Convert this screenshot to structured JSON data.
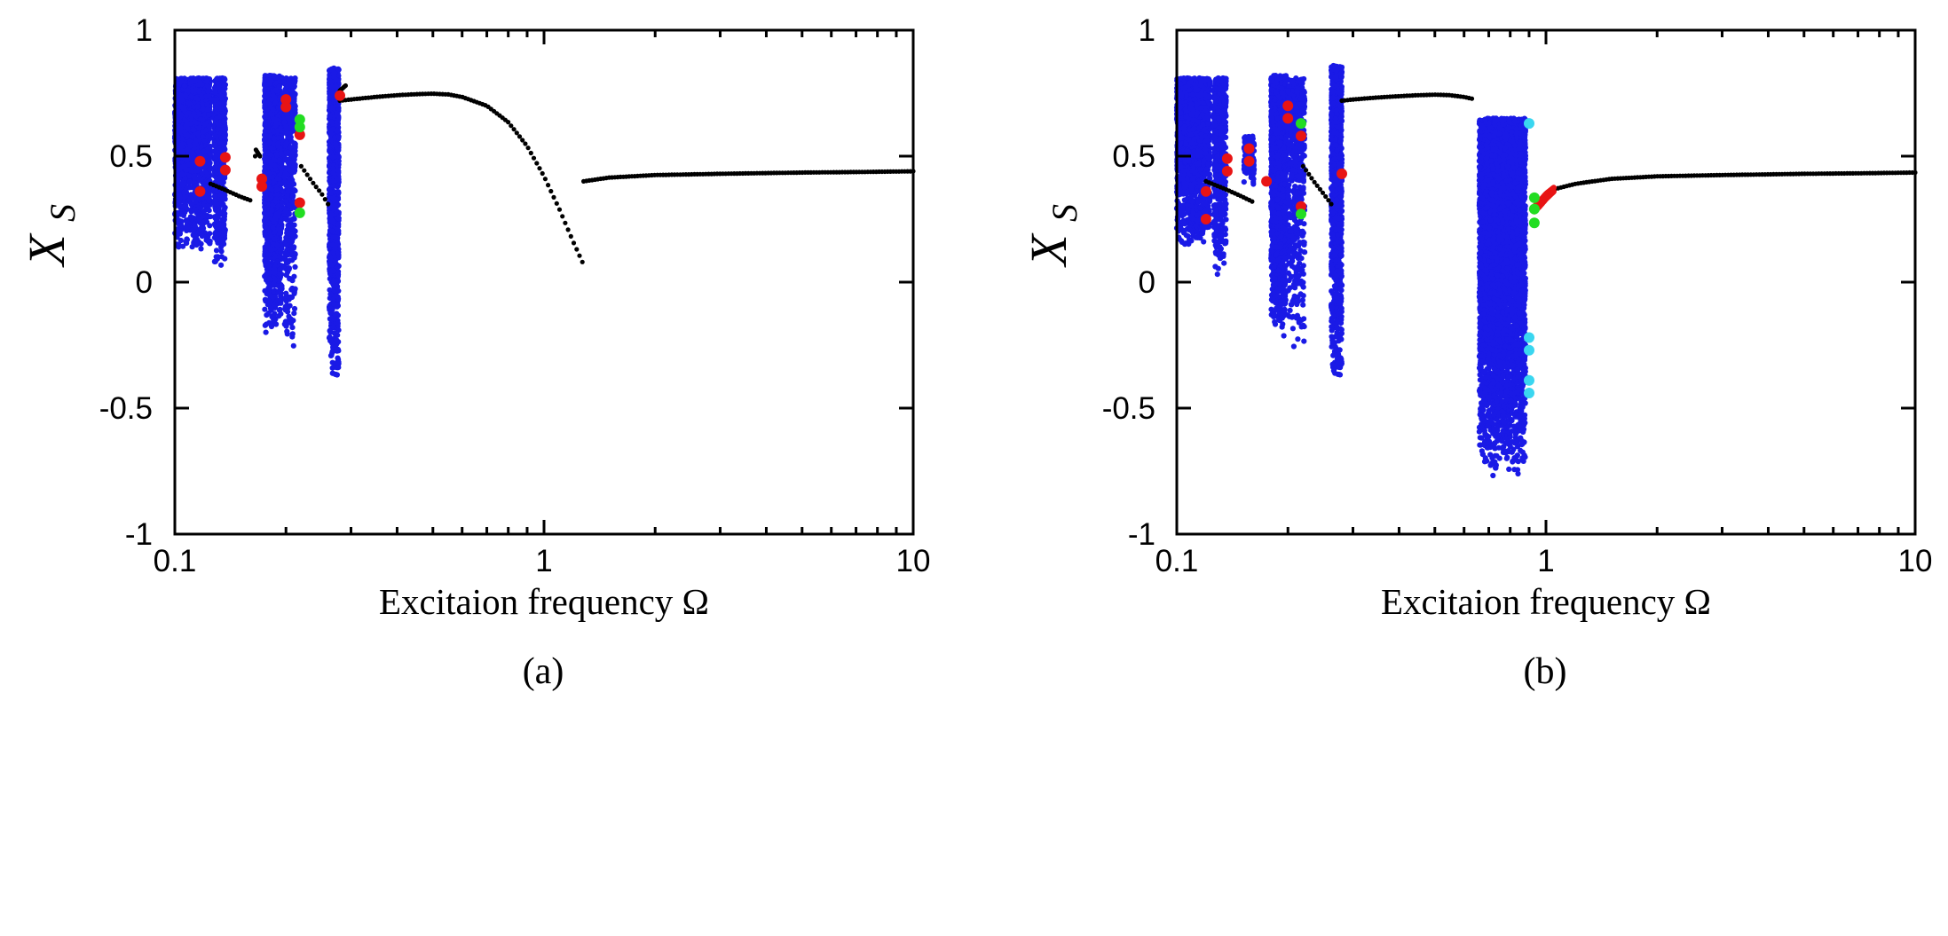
{
  "chart_data": [
    {
      "panel_id": "a",
      "type": "scatter",
      "subtype": "bifurcation-diagram",
      "panel_label": "(a)",
      "xlabel": "Excitaion frequency Ω",
      "ylabel_main": "X",
      "ylabel_sub": "S",
      "xscale": "log",
      "xlim": [
        0.1,
        10
      ],
      "ylim": [
        -1,
        1
      ],
      "xticks": [
        0.1,
        1,
        10
      ],
      "xtick_labels": [
        "0.1",
        "1",
        "10"
      ],
      "yticks": [
        -1,
        -0.5,
        0,
        0.5,
        1
      ],
      "ytick_labels": [
        "-1",
        "-0.5",
        "0",
        "0.5",
        "1"
      ],
      "colors": {
        "chaos": "#1a1ae6",
        "period1": "#000000",
        "period2": "#e81414",
        "period3": "#22dd22",
        "multi": "#3ad6f0"
      },
      "chaotic_bands": [
        {
          "x": [
            0.1,
            0.125
          ],
          "y": [
            0.12,
            0.81
          ],
          "count": 1700
        },
        {
          "x": [
            0.128,
            0.137
          ],
          "y": [
            0.05,
            0.81
          ],
          "count": 650
        },
        {
          "x": [
            0.175,
            0.195
          ],
          "y": [
            -0.22,
            0.82
          ],
          "count": 1500
        },
        {
          "x": [
            0.198,
            0.212
          ],
          "y": [
            -0.26,
            0.81
          ],
          "count": 500
        },
        {
          "x": [
            0.262,
            0.278
          ],
          "y": [
            -0.39,
            0.85
          ],
          "count": 1250
        }
      ],
      "periodic_curves": [
        {
          "x": [
            0.28,
            0.3,
            0.35,
            0.4,
            0.45,
            0.5,
            0.55,
            0.6,
            0.7,
            0.8,
            0.9,
            1.0,
            1.1,
            1.2,
            1.27
          ],
          "y": [
            0.72,
            0.725,
            0.735,
            0.742,
            0.746,
            0.748,
            0.745,
            0.735,
            0.7,
            0.635,
            0.54,
            0.42,
            0.29,
            0.16,
            0.08
          ]
        },
        {
          "x": [
            1.28,
            1.5,
            2,
            3,
            5,
            7,
            10
          ],
          "y": [
            0.4,
            0.415,
            0.425,
            0.43,
            0.435,
            0.437,
            0.44
          ]
        },
        {
          "x": [
            0.125,
            0.135,
            0.15,
            0.16
          ],
          "y": [
            0.39,
            0.37,
            0.34,
            0.325
          ]
        },
        {
          "x": [
            0.22,
            0.235,
            0.25,
            0.26
          ],
          "y": [
            0.46,
            0.4,
            0.35,
            0.31
          ]
        },
        {
          "x": [
            0.165,
            0.17
          ],
          "y": [
            0.53,
            0.5
          ]
        },
        {
          "x": [
            0.28,
            0.29
          ],
          "y": [
            0.76,
            0.78
          ]
        }
      ],
      "period_points": [
        {
          "x": 0.117,
          "y": 0.48,
          "kind": "period2"
        },
        {
          "x": 0.117,
          "y": 0.36,
          "kind": "period2"
        },
        {
          "x": 0.137,
          "y": 0.495,
          "kind": "period2"
        },
        {
          "x": 0.137,
          "y": 0.445,
          "kind": "period2"
        },
        {
          "x": 0.172,
          "y": 0.41,
          "kind": "period2"
        },
        {
          "x": 0.172,
          "y": 0.38,
          "kind": "period2"
        },
        {
          "x": 0.2,
          "y": 0.725,
          "kind": "period2"
        },
        {
          "x": 0.2,
          "y": 0.695,
          "kind": "period2"
        },
        {
          "x": 0.218,
          "y": 0.585,
          "kind": "period2"
        },
        {
          "x": 0.218,
          "y": 0.315,
          "kind": "period2"
        },
        {
          "x": 0.28,
          "y": 0.74,
          "kind": "period2"
        },
        {
          "x": 0.218,
          "y": 0.645,
          "kind": "period3"
        },
        {
          "x": 0.218,
          "y": 0.615,
          "kind": "period3"
        },
        {
          "x": 0.218,
          "y": 0.275,
          "kind": "period3"
        }
      ]
    },
    {
      "panel_id": "b",
      "type": "scatter",
      "subtype": "bifurcation-diagram",
      "panel_label": "(b)",
      "xlabel": "Excitaion frequency Ω",
      "ylabel_main": "X",
      "ylabel_sub": "S",
      "xscale": "log",
      "xlim": [
        0.1,
        10
      ],
      "ylim": [
        -1,
        1
      ],
      "xticks": [
        0.1,
        1,
        10
      ],
      "xtick_labels": [
        "0.1",
        "1",
        "10"
      ],
      "yticks": [
        -1,
        -0.5,
        0,
        0.5,
        1
      ],
      "ytick_labels": [
        "-1",
        "-0.5",
        "0",
        "0.5",
        "1"
      ],
      "colors": {
        "chaos": "#1a1ae6",
        "period1": "#000000",
        "period2": "#e81414",
        "period3": "#22dd22",
        "multi": "#3ad6f0"
      },
      "chaotic_bands": [
        {
          "x": [
            0.1,
            0.123
          ],
          "y": [
            0.13,
            0.81
          ],
          "count": 1700
        },
        {
          "x": [
            0.126,
            0.136
          ],
          "y": [
            0.03,
            0.81
          ],
          "count": 650
        },
        {
          "x": [
            0.152,
            0.162
          ],
          "y": [
            0.38,
            0.58
          ],
          "count": 140
        },
        {
          "x": [
            0.18,
            0.198
          ],
          "y": [
            -0.22,
            0.82
          ],
          "count": 1500
        },
        {
          "x": [
            0.2,
            0.222
          ],
          "y": [
            -0.28,
            0.81
          ],
          "count": 550
        },
        {
          "x": [
            0.262,
            0.28
          ],
          "y": [
            -0.39,
            0.86
          ],
          "count": 1250
        },
        {
          "x": [
            0.66,
            0.88
          ],
          "y": [
            -0.77,
            0.65
          ],
          "count": 5500
        }
      ],
      "periodic_curves": [
        {
          "x": [
            0.28,
            0.3,
            0.35,
            0.4,
            0.45,
            0.5,
            0.55,
            0.6,
            0.63
          ],
          "y": [
            0.72,
            0.725,
            0.733,
            0.738,
            0.742,
            0.744,
            0.742,
            0.735,
            0.728
          ]
        },
        {
          "x": [
            1.06,
            1.2,
            1.5,
            2,
            3,
            5,
            7,
            10
          ],
          "y": [
            0.37,
            0.39,
            0.41,
            0.42,
            0.425,
            0.43,
            0.432,
            0.435
          ]
        },
        {
          "x": [
            0.12,
            0.135,
            0.15,
            0.16
          ],
          "y": [
            0.4,
            0.37,
            0.34,
            0.32
          ]
        },
        {
          "x": [
            0.22,
            0.235,
            0.25,
            0.262
          ],
          "y": [
            0.46,
            0.4,
            0.35,
            0.31
          ]
        }
      ],
      "red_branches": [
        {
          "x": [
            0.93,
            0.96,
            1.0,
            1.05
          ],
          "y": [
            0.3,
            0.32,
            0.35,
            0.375
          ]
        },
        {
          "x": [
            0.93,
            0.96,
            1.0,
            1.05
          ],
          "y": [
            0.28,
            0.3,
            0.33,
            0.36
          ]
        }
      ],
      "period_points": [
        {
          "x": 0.12,
          "y": 0.36,
          "kind": "period2"
        },
        {
          "x": 0.12,
          "y": 0.25,
          "kind": "period2"
        },
        {
          "x": 0.137,
          "y": 0.49,
          "kind": "period2"
        },
        {
          "x": 0.137,
          "y": 0.44,
          "kind": "period2"
        },
        {
          "x": 0.157,
          "y": 0.53,
          "kind": "period2"
        },
        {
          "x": 0.157,
          "y": 0.48,
          "kind": "period2"
        },
        {
          "x": 0.175,
          "y": 0.4,
          "kind": "period2"
        },
        {
          "x": 0.2,
          "y": 0.7,
          "kind": "period2"
        },
        {
          "x": 0.2,
          "y": 0.65,
          "kind": "period2"
        },
        {
          "x": 0.217,
          "y": 0.58,
          "kind": "period2"
        },
        {
          "x": 0.217,
          "y": 0.3,
          "kind": "period2"
        },
        {
          "x": 0.28,
          "y": 0.43,
          "kind": "period2"
        },
        {
          "x": 0.217,
          "y": 0.63,
          "kind": "period3"
        },
        {
          "x": 0.217,
          "y": 0.27,
          "kind": "period3"
        },
        {
          "x": 0.93,
          "y": 0.335,
          "kind": "period3"
        },
        {
          "x": 0.93,
          "y": 0.29,
          "kind": "period3"
        },
        {
          "x": 0.93,
          "y": 0.235,
          "kind": "period3"
        },
        {
          "x": 0.9,
          "y": 0.63,
          "kind": "multi"
        },
        {
          "x": 0.9,
          "y": -0.22,
          "kind": "multi"
        },
        {
          "x": 0.9,
          "y": -0.27,
          "kind": "multi"
        },
        {
          "x": 0.9,
          "y": -0.39,
          "kind": "multi"
        },
        {
          "x": 0.9,
          "y": -0.44,
          "kind": "multi"
        }
      ]
    }
  ]
}
